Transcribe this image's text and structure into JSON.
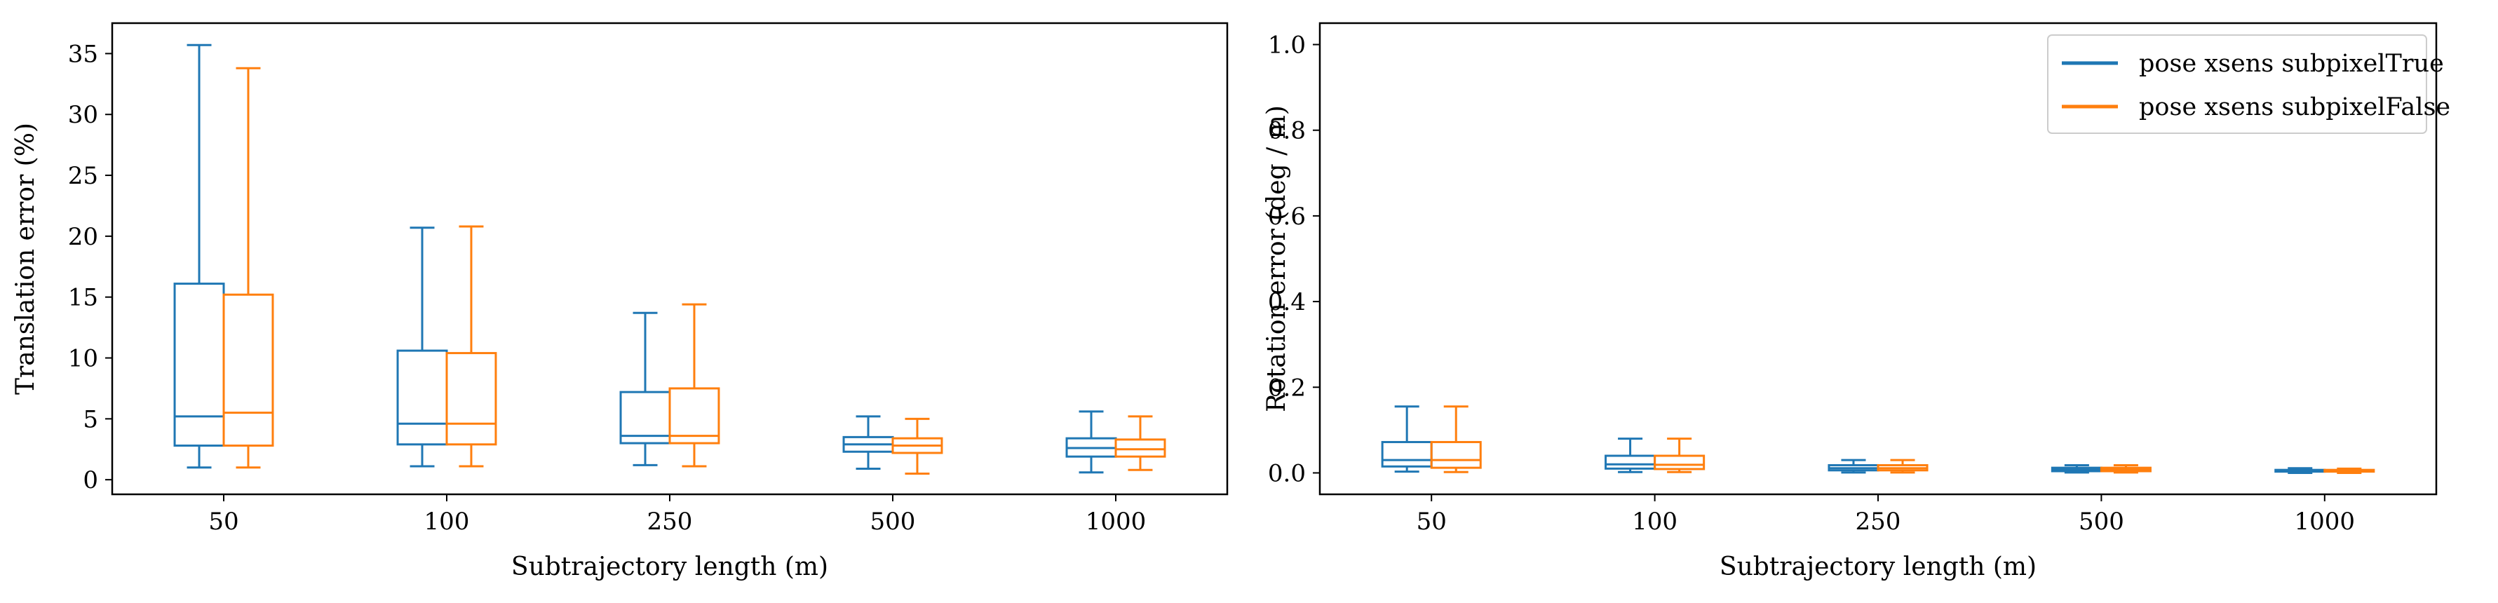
{
  "chart_data": [
    {
      "type": "box",
      "xlabel": "Subtrajectory length (m)",
      "ylabel": "Translation error (%)",
      "categories": [
        "50",
        "100",
        "250",
        "500",
        "1000"
      ],
      "ylim": [
        -1.2,
        37.5
      ],
      "yticks": [
        0,
        5,
        10,
        15,
        20,
        25,
        30,
        35
      ],
      "grid": false,
      "legend": "none",
      "series": [
        {
          "color": "#1f77b4",
          "boxes": [
            {
              "whislo": 1.0,
              "q1": 2.8,
              "med": 5.2,
              "q3": 16.1,
              "whishi": 35.7
            },
            {
              "whislo": 1.1,
              "q1": 2.9,
              "med": 4.6,
              "q3": 10.6,
              "whishi": 20.7
            },
            {
              "whislo": 1.2,
              "q1": 3.0,
              "med": 3.6,
              "q3": 7.2,
              "whishi": 13.7
            },
            {
              "whislo": 0.9,
              "q1": 2.3,
              "med": 2.9,
              "q3": 3.5,
              "whishi": 5.2
            },
            {
              "whislo": 0.6,
              "q1": 1.9,
              "med": 2.6,
              "q3": 3.4,
              "whishi": 5.6
            }
          ]
        },
        {
          "color": "#ff7f0e",
          "boxes": [
            {
              "whislo": 1.0,
              "q1": 2.8,
              "med": 5.5,
              "q3": 15.2,
              "whishi": 33.8
            },
            {
              "whislo": 1.1,
              "q1": 2.9,
              "med": 4.6,
              "q3": 10.4,
              "whishi": 20.8
            },
            {
              "whislo": 1.1,
              "q1": 3.0,
              "med": 3.6,
              "q3": 7.5,
              "whishi": 14.4
            },
            {
              "whislo": 0.5,
              "q1": 2.2,
              "med": 2.8,
              "q3": 3.4,
              "whishi": 5.0
            },
            {
              "whislo": 0.8,
              "q1": 1.9,
              "med": 2.5,
              "q3": 3.3,
              "whishi": 5.2
            }
          ]
        }
      ]
    },
    {
      "type": "box",
      "xlabel": "Subtrajectory length (m)",
      "ylabel": "Rotation error (deg / m)",
      "categories": [
        "50",
        "100",
        "250",
        "500",
        "1000"
      ],
      "ylim": [
        -0.05,
        1.05
      ],
      "yticks": [
        "0.0",
        "0.2",
        "0.4",
        "0.6",
        "0.8",
        "1.0"
      ],
      "grid": false,
      "legend": "top-right",
      "series": [
        {
          "name": "pose xsens subpixelTrue",
          "color": "#1f77b4",
          "boxes": [
            {
              "whislo": 0.003,
              "q1": 0.015,
              "med": 0.03,
              "q3": 0.072,
              "whishi": 0.155
            },
            {
              "whislo": 0.002,
              "q1": 0.01,
              "med": 0.02,
              "q3": 0.04,
              "whishi": 0.08
            },
            {
              "whislo": 0.001,
              "q1": 0.006,
              "med": 0.011,
              "q3": 0.018,
              "whishi": 0.03
            },
            {
              "whislo": 0.001,
              "q1": 0.004,
              "med": 0.008,
              "q3": 0.012,
              "whishi": 0.018
            },
            {
              "whislo": 0.0,
              "q1": 0.003,
              "med": 0.005,
              "q3": 0.007,
              "whishi": 0.011
            }
          ]
        },
        {
          "name": "pose xsens subpixelFalse",
          "color": "#ff7f0e",
          "boxes": [
            {
              "whislo": 0.002,
              "q1": 0.012,
              "med": 0.03,
              "q3": 0.072,
              "whishi": 0.155
            },
            {
              "whislo": 0.002,
              "q1": 0.009,
              "med": 0.019,
              "q3": 0.04,
              "whishi": 0.08
            },
            {
              "whislo": 0.001,
              "q1": 0.006,
              "med": 0.011,
              "q3": 0.018,
              "whishi": 0.03
            },
            {
              "whislo": 0.001,
              "q1": 0.004,
              "med": 0.008,
              "q3": 0.012,
              "whishi": 0.018
            },
            {
              "whislo": 0.0,
              "q1": 0.003,
              "med": 0.005,
              "q3": 0.007,
              "whishi": 0.01
            }
          ]
        }
      ]
    }
  ]
}
